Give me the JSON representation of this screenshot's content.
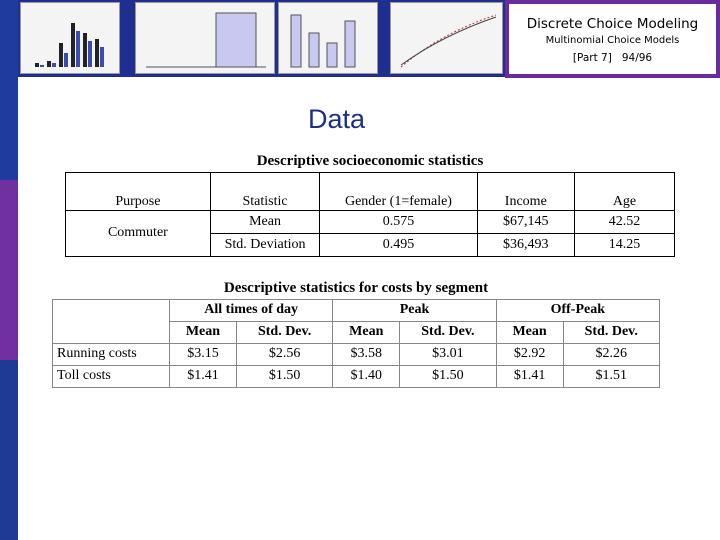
{
  "header": {
    "title": "Discrete Choice Modeling",
    "subtitle": "Multinomial Choice Models",
    "part": "[Part 7]",
    "page": "94/96"
  },
  "slide_title": "Data",
  "table1": {
    "caption": "Descriptive socioeconomic statistics",
    "columns": [
      "Purpose",
      "Statistic",
      "Gender (1=female)",
      "Income",
      "Age"
    ],
    "purpose": "Commuter",
    "rows": [
      [
        "Mean",
        "0.575",
        "$67,145",
        "42.52"
      ],
      [
        "Std. Deviation",
        "0.495",
        "$36,493",
        "14.25"
      ]
    ]
  },
  "table2": {
    "caption": "Descriptive statistics for costs by segment",
    "groups": [
      "All times of day",
      "Peak",
      "Off-Peak"
    ],
    "subcolumns": [
      "Mean",
      "Std. Dev.",
      "Mean",
      "Std. Dev.",
      "Mean",
      "Std. Dev."
    ],
    "rows": [
      {
        "label": "Running costs",
        "values": [
          "$3.15",
          "$2.56",
          "$3.58",
          "$3.01",
          "$2.92",
          "$2.26"
        ]
      },
      {
        "label": "Toll costs",
        "values": [
          "$1.41",
          "$1.50",
          "$1.40",
          "$1.50",
          "$1.41",
          "$1.51"
        ]
      }
    ]
  }
}
